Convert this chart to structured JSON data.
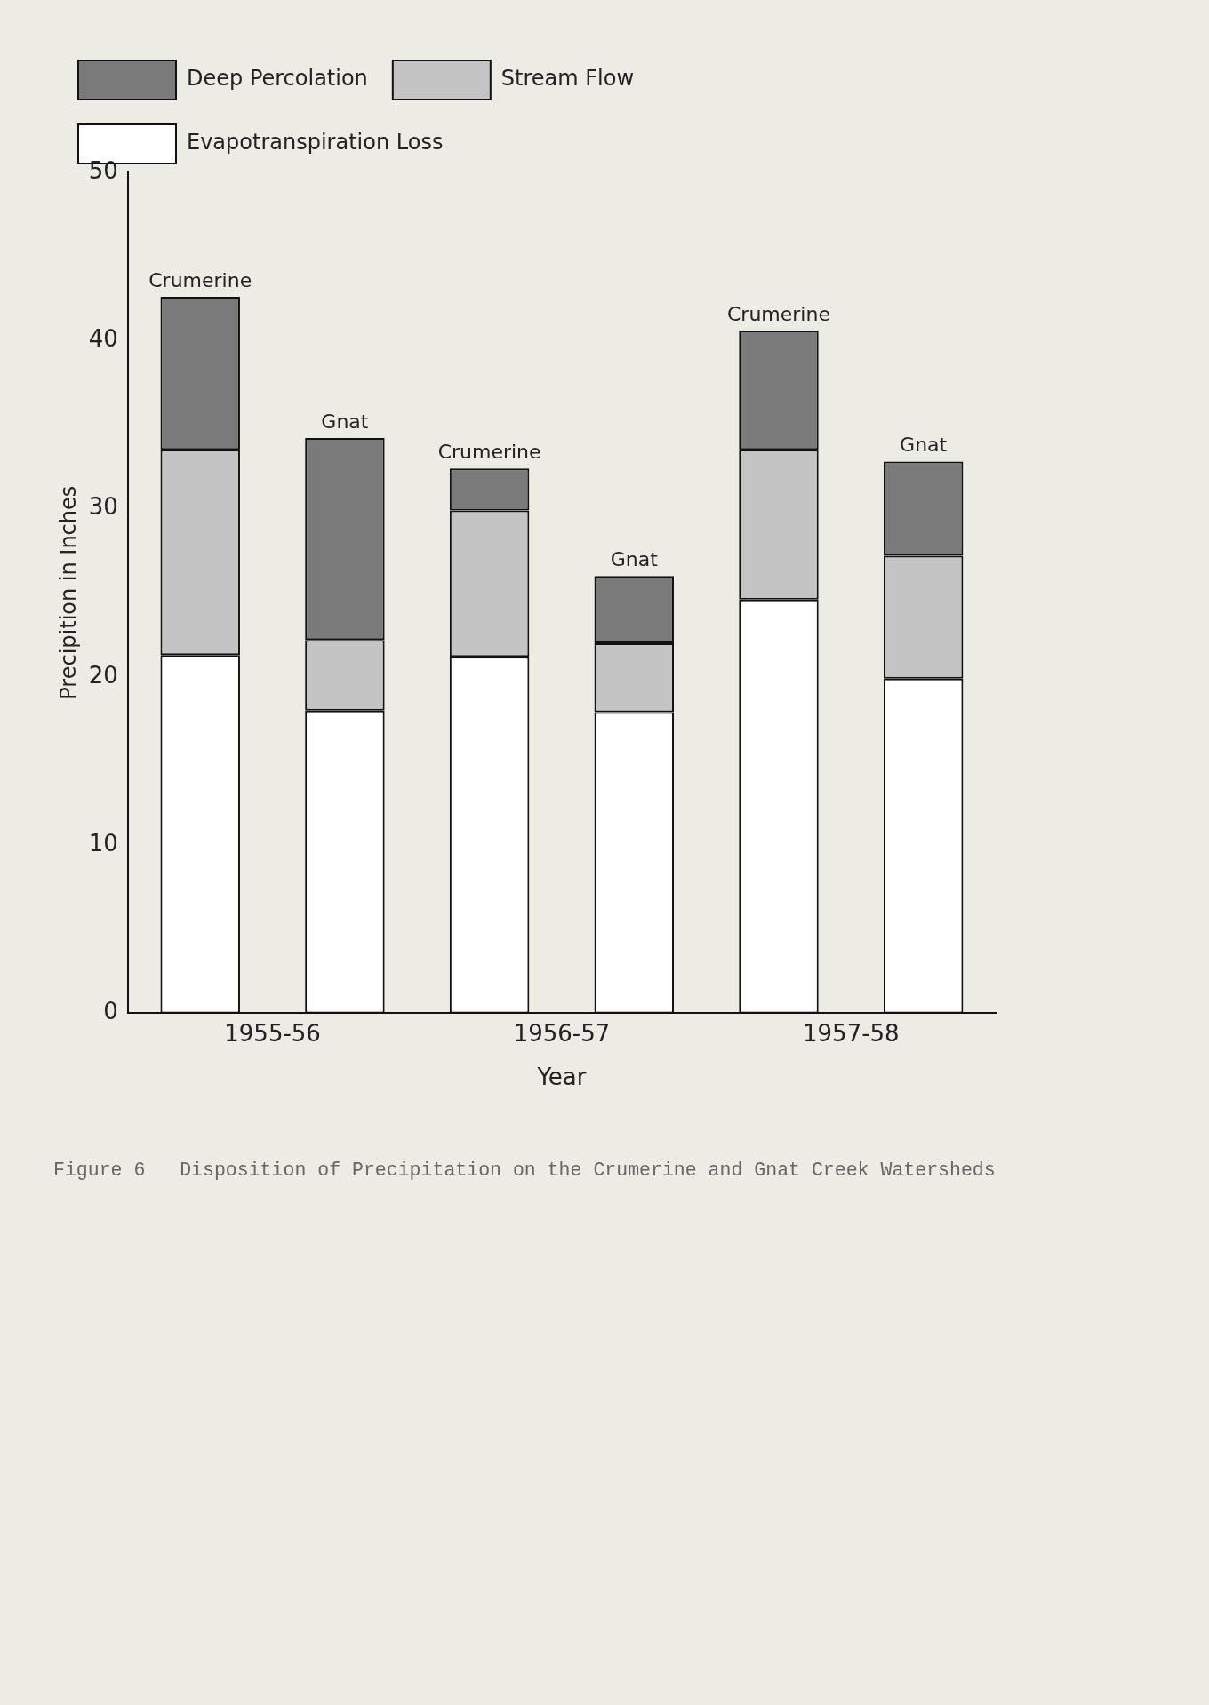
{
  "chart_data": {
    "type": "bar",
    "stacked": true,
    "title": "Figure 6   Disposition of Precipitation on the Crumerine and Gnat Creek Watersheds",
    "xlabel": "Year",
    "ylabel": "Precipition in Inches",
    "categories": [
      "Crumerine",
      "Gnat",
      "Crumerine",
      "Gnat",
      "Crumerine",
      "Gnat"
    ],
    "series": [
      {
        "name": "Evapotranspiration Loss",
        "color": "#ffffff",
        "values": [
          21.3,
          18.0,
          21.2,
          17.9,
          24.6,
          19.9
        ]
      },
      {
        "name": "Stream Flow",
        "color": "#c4c4c4",
        "values": [
          12.2,
          4.2,
          8.7,
          4.1,
          8.9,
          7.3
        ]
      },
      {
        "name": "Deep Percolation",
        "color": "#7a7a7a",
        "values": [
          9.1,
          12.0,
          2.5,
          4.0,
          7.1,
          5.6
        ]
      }
    ],
    "annotations": [
      "1955-56",
      "1956-57",
      "1957-58"
    ],
    "ylim": [
      0,
      50
    ],
    "yticks": [
      0,
      10,
      20,
      30,
      40,
      50
    ],
    "legend": "top left"
  }
}
